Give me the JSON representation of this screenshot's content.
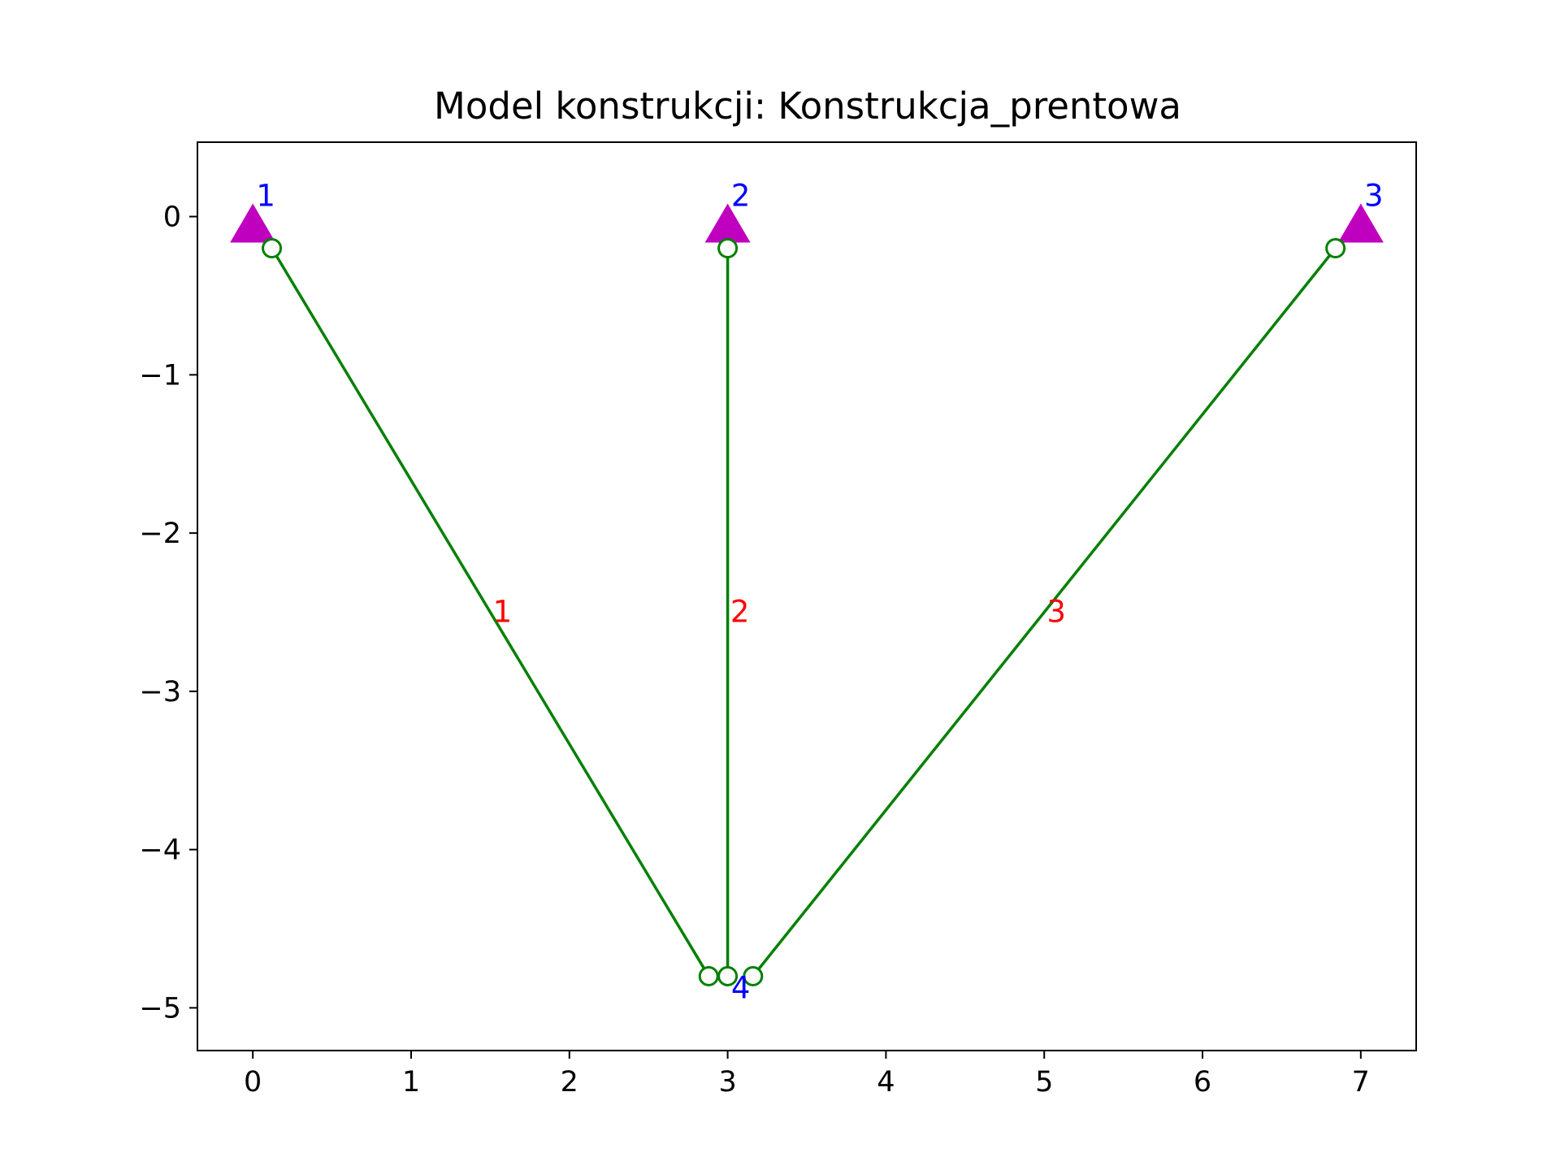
{
  "title": "Model konstrukcji: Konstrukcja_prentowa",
  "colors": {
    "member": "#008000",
    "support": "#bf00bf",
    "node_label": "#0000ff",
    "member_label": "#ff0000",
    "axis": "#000000"
  },
  "chart_data": {
    "type": "line",
    "title": "Model konstrukcji: Konstrukcja_prentowa",
    "xlabel": "",
    "ylabel": "",
    "xlim": [
      -0.35,
      7.35
    ],
    "ylim": [
      -5.27,
      0.47
    ],
    "x_ticks": [
      0,
      1,
      2,
      3,
      4,
      5,
      6,
      7
    ],
    "y_ticks": [
      0,
      -1,
      -2,
      -3,
      -4,
      -5
    ],
    "x_tick_labels": [
      "0",
      "1",
      "2",
      "3",
      "4",
      "5",
      "6",
      "7"
    ],
    "y_tick_labels": [
      "0",
      "−1",
      "−2",
      "−3",
      "−4",
      "−5"
    ],
    "grid": false,
    "nodes": [
      {
        "id": "1",
        "label": "1",
        "x": 0,
        "y": 0,
        "support": true
      },
      {
        "id": "2",
        "label": "2",
        "x": 3,
        "y": 0,
        "support": true
      },
      {
        "id": "3",
        "label": "3",
        "x": 7,
        "y": 0,
        "support": true
      },
      {
        "id": "4",
        "label": "4",
        "x": 3,
        "y": -4.8,
        "support": false
      }
    ],
    "members": [
      {
        "id": "1",
        "label": "1",
        "start": [
          0.12,
          -0.2
        ],
        "end": [
          2.88,
          -4.8
        ]
      },
      {
        "id": "2",
        "label": "2",
        "start": [
          3.0,
          -0.2
        ],
        "end": [
          3.0,
          -4.8
        ]
      },
      {
        "id": "3",
        "label": "3",
        "start": [
          6.84,
          -0.2
        ],
        "end": [
          3.16,
          -4.8
        ]
      }
    ]
  }
}
